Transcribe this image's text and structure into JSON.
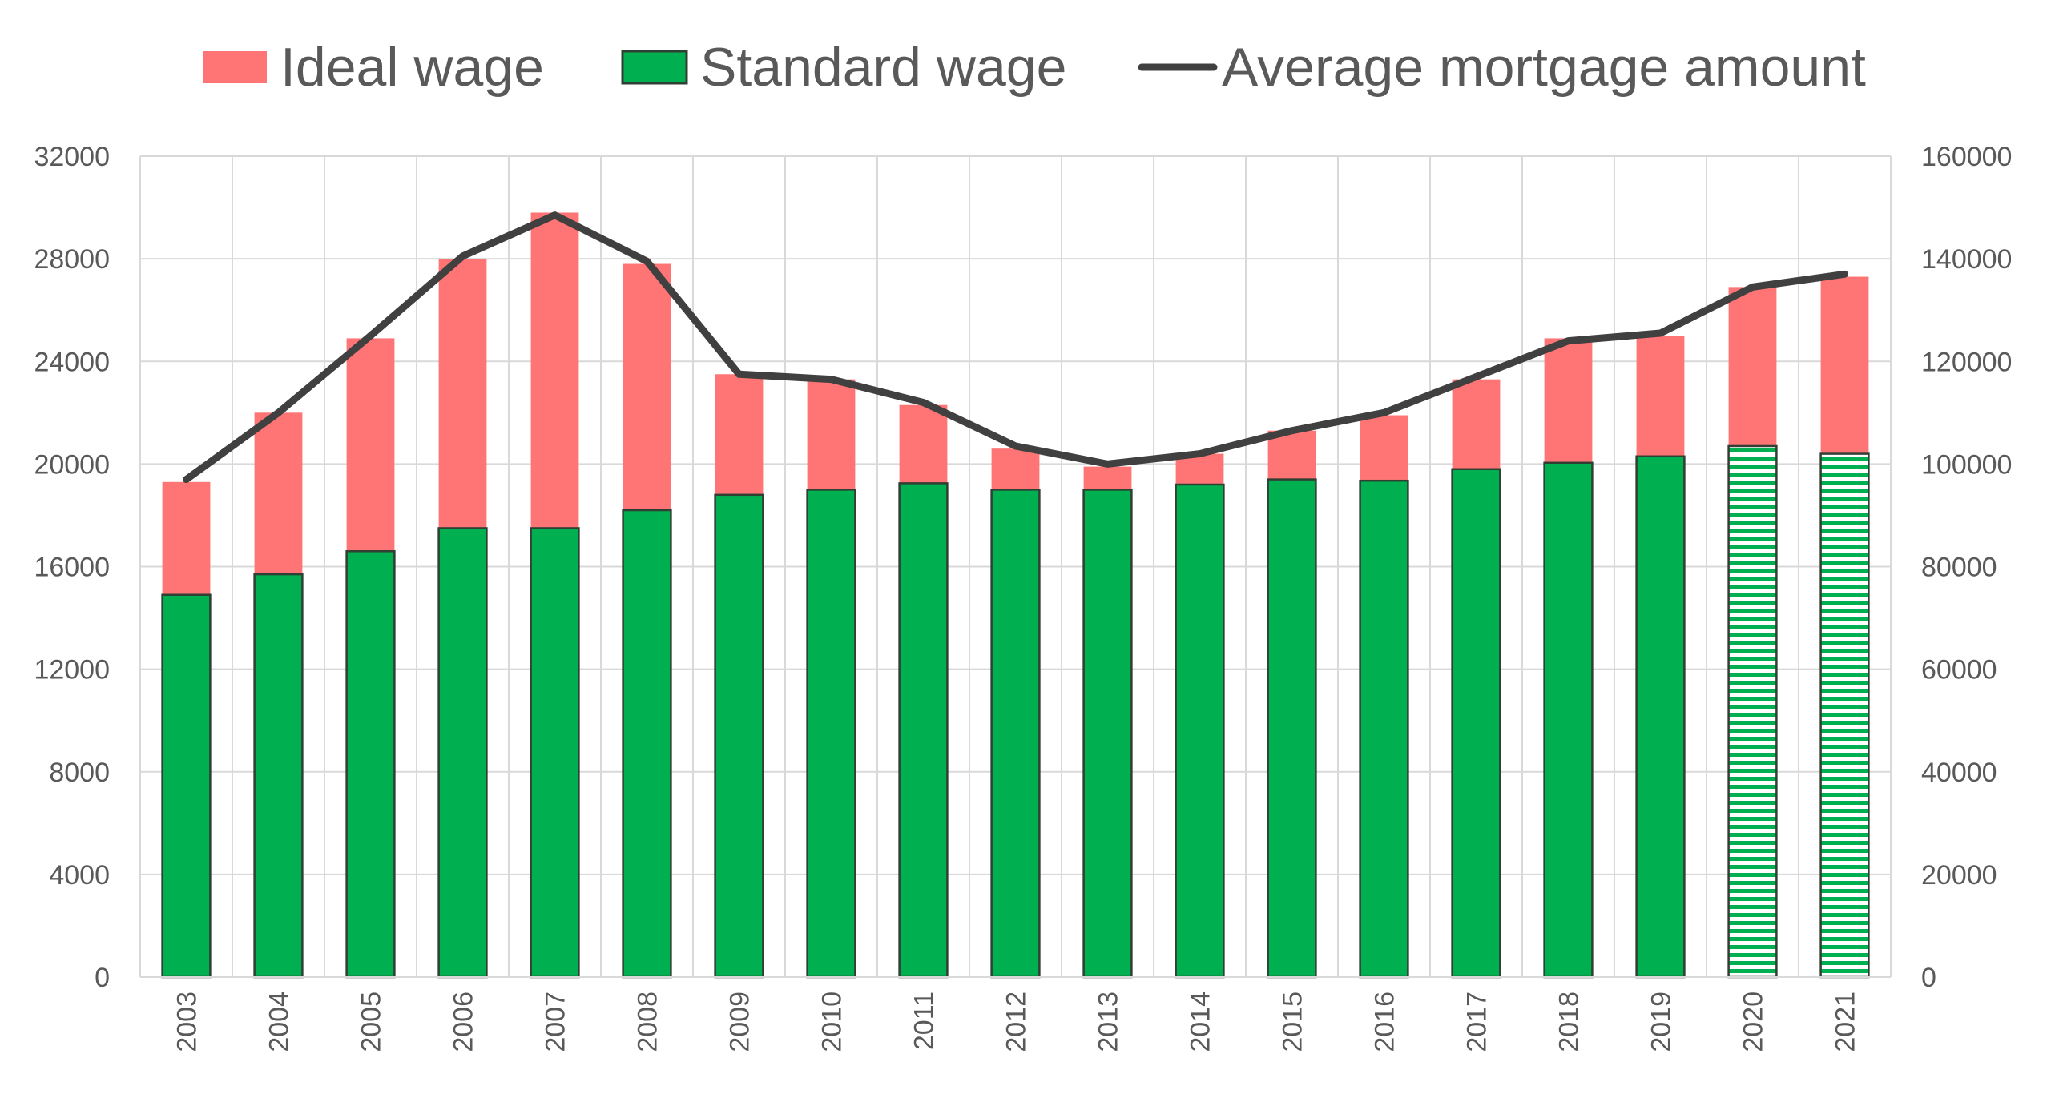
{
  "colors": {
    "ideal": "#ff7575",
    "standard": "#00b050",
    "line": "#404040",
    "bar_border": "#2f3f33",
    "projected_stripe": "#00b050"
  },
  "legend": {
    "ideal": "Ideal wage",
    "standard": "Standard wage",
    "mortgage": "Average mortgage amount"
  },
  "chart_data": {
    "type": "bar",
    "subtype": "stacked bar with line on secondary axis",
    "categories": [
      "2003",
      "2004",
      "2005",
      "2006",
      "2007",
      "2008",
      "2009",
      "2010",
      "2011",
      "2012",
      "2013",
      "2014",
      "2015",
      "2016",
      "2017",
      "2018",
      "2019",
      "2020",
      "2021"
    ],
    "series": [
      {
        "name": "Standard wage",
        "type": "bar",
        "axis": "left",
        "values": [
          14900,
          15700,
          16600,
          17500,
          17500,
          18200,
          18800,
          19000,
          19250,
          19000,
          19000,
          19200,
          19400,
          19350,
          19800,
          20050,
          20300,
          20700,
          20400
        ],
        "pattern_from_category": "2020"
      },
      {
        "name": "Ideal wage",
        "type": "bar",
        "axis": "left",
        "totals": [
          19300,
          22000,
          24900,
          28000,
          29800,
          27800,
          23500,
          23300,
          22300,
          20600,
          19900,
          20400,
          21300,
          21900,
          23300,
          24900,
          25000,
          26900,
          27300
        ]
      },
      {
        "name": "Average mortgage amount",
        "type": "line",
        "axis": "right",
        "values": [
          97000,
          110000,
          125000,
          140500,
          148500,
          139500,
          117500,
          116500,
          112000,
          103500,
          100000,
          102000,
          106500,
          110000,
          117000,
          124000,
          125500,
          134500,
          137000
        ]
      }
    ],
    "y_left": {
      "ylim": [
        0,
        32000
      ],
      "ticks": [
        "0",
        "4000",
        "8000",
        "12000",
        "16000",
        "20000",
        "24000",
        "28000",
        "32000"
      ]
    },
    "y_right": {
      "ylim": [
        0,
        160000
      ],
      "ticks": [
        "0",
        "20000",
        "40000",
        "60000",
        "80000",
        "100000",
        "120000",
        "140000",
        "160000"
      ]
    },
    "grid": true,
    "legend_position": "top"
  }
}
